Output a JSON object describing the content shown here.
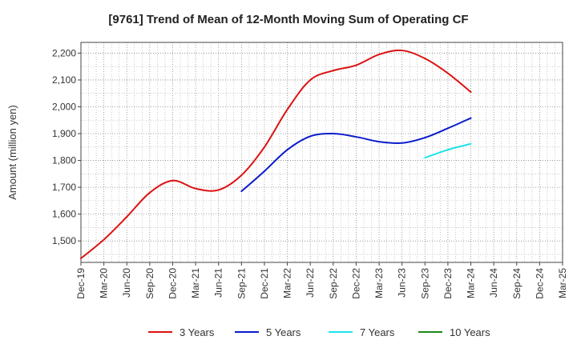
{
  "chart_data": {
    "type": "line",
    "title": "[9761]  Trend of Mean of 12-Month Moving Sum of Operating CF",
    "xlabel": "",
    "ylabel": "Amount (million yen)",
    "ylim": [
      1420,
      2240
    ],
    "yticks": [
      1500,
      1600,
      1700,
      1800,
      1900,
      2000,
      2100,
      2200
    ],
    "ytick_labels": [
      "1,500",
      "1,600",
      "1,700",
      "1,800",
      "1,900",
      "2,000",
      "2,100",
      "2,200"
    ],
    "categories": [
      "Dec-19",
      "Mar-20",
      "Jun-20",
      "Sep-20",
      "Dec-20",
      "Mar-21",
      "Jun-21",
      "Sep-21",
      "Dec-21",
      "Mar-22",
      "Jun-22",
      "Sep-22",
      "Dec-22",
      "Mar-23",
      "Jun-23",
      "Sep-23",
      "Dec-23",
      "Mar-24",
      "Jun-24",
      "Sep-24",
      "Dec-24",
      "Mar-25"
    ],
    "grid": true,
    "series": [
      {
        "name": "3 Years",
        "color": "#dd1111",
        "values": [
          1435,
          1505,
          1590,
          1680,
          1725,
          1695,
          1690,
          1745,
          1850,
          1990,
          2100,
          2135,
          2155,
          2195,
          2210,
          2180,
          2125,
          2055,
          null,
          null,
          null,
          null
        ]
      },
      {
        "name": "5 Years",
        "color": "#0b1ccc",
        "values": [
          null,
          null,
          null,
          null,
          null,
          null,
          null,
          1685,
          1760,
          1840,
          1890,
          1900,
          1888,
          1870,
          1865,
          1885,
          1920,
          1958,
          null,
          null,
          null,
          null
        ]
      },
      {
        "name": "7 Years",
        "color": "#1de3ee",
        "values": [
          null,
          null,
          null,
          null,
          null,
          null,
          null,
          null,
          null,
          null,
          null,
          null,
          null,
          null,
          null,
          1810,
          1840,
          1862,
          null,
          null,
          null,
          null
        ]
      },
      {
        "name": "10 Years",
        "color": "#1a8a1a",
        "values": [
          null,
          null,
          null,
          null,
          null,
          null,
          null,
          null,
          null,
          null,
          null,
          null,
          null,
          null,
          null,
          null,
          null,
          null,
          null,
          null,
          null,
          null
        ]
      }
    ]
  }
}
